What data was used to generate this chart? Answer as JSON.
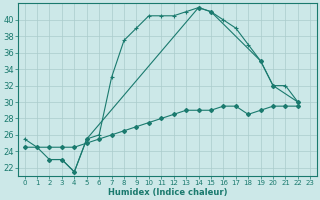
{
  "xlabel": "Humidex (Indice chaleur)",
  "bg_color": "#cce8e8",
  "grid_color": "#aacccc",
  "line_color": "#1a7a6e",
  "xlim": [
    -0.5,
    23.5
  ],
  "ylim": [
    21.0,
    42.0
  ],
  "yticks": [
    22,
    24,
    26,
    28,
    30,
    32,
    34,
    36,
    38,
    40
  ],
  "xticks": [
    0,
    1,
    2,
    3,
    4,
    5,
    6,
    7,
    8,
    9,
    10,
    11,
    12,
    13,
    14,
    15,
    16,
    17,
    18,
    19,
    20,
    21,
    22,
    23
  ],
  "line1_x": [
    0,
    1,
    2,
    3,
    4,
    5,
    6,
    7,
    8,
    9,
    10,
    11,
    12,
    13,
    14,
    15,
    16,
    17,
    18,
    19,
    20,
    21,
    22
  ],
  "line1_y": [
    25.5,
    24.5,
    23.0,
    23.0,
    21.5,
    25.5,
    26.0,
    33.0,
    37.5,
    39.0,
    40.5,
    40.5,
    40.5,
    41.0,
    41.5,
    41.0,
    40.0,
    39.0,
    37.0,
    35.0,
    32.0,
    32.0,
    30.0
  ],
  "line2_x": [
    2,
    3,
    4,
    5,
    14,
    15,
    19,
    20,
    22
  ],
  "line2_y": [
    23.0,
    23.0,
    21.5,
    25.5,
    41.5,
    41.0,
    35.0,
    32.0,
    30.0
  ],
  "line3_x": [
    0,
    1,
    2,
    3,
    4,
    5,
    6,
    7,
    8,
    9,
    10,
    11,
    12,
    13,
    14,
    15,
    16,
    17,
    18,
    19,
    20,
    21,
    22
  ],
  "line3_y": [
    24.5,
    24.5,
    24.5,
    24.5,
    24.5,
    25.0,
    25.5,
    26.0,
    26.5,
    27.0,
    27.5,
    28.0,
    28.5,
    29.0,
    29.0,
    29.0,
    29.5,
    29.5,
    28.5,
    29.0,
    29.5,
    29.5,
    29.5
  ]
}
